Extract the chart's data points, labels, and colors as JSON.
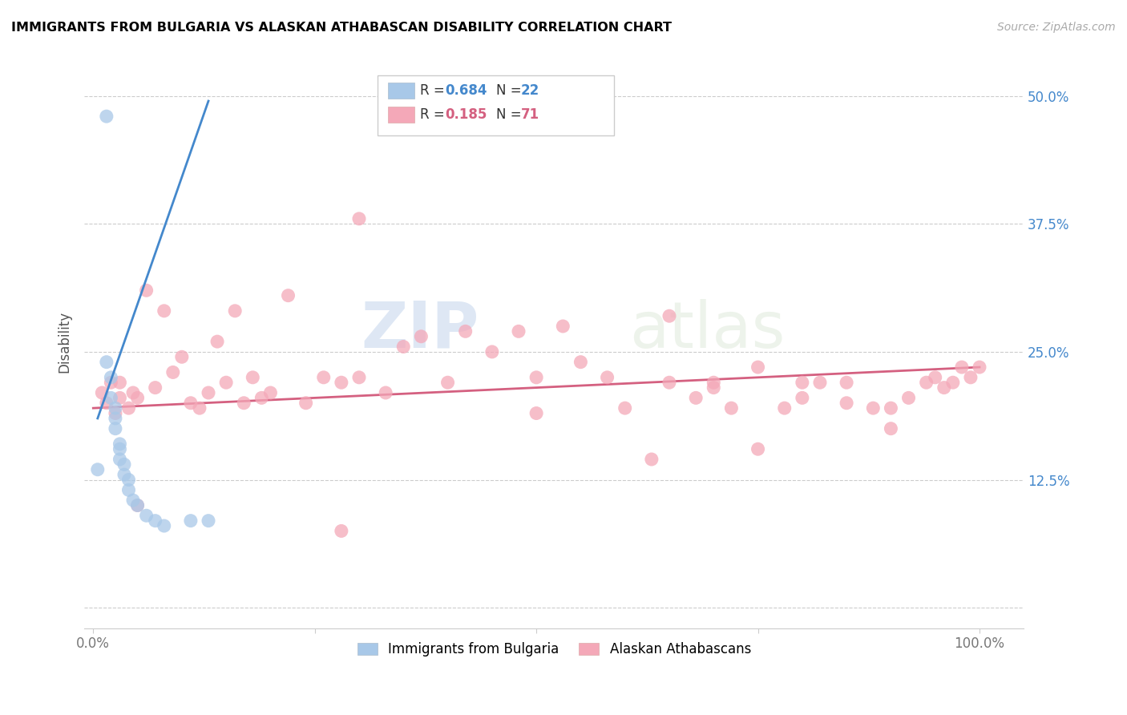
{
  "title": "IMMIGRANTS FROM BULGARIA VS ALASKAN ATHABASCAN DISABILITY CORRELATION CHART",
  "source": "Source: ZipAtlas.com",
  "ylabel": "Disability",
  "x_tick_labels": [
    "0.0%",
    "",
    "",
    "",
    "100.0%"
  ],
  "y_tick_labels": [
    "",
    "12.5%",
    "25.0%",
    "37.5%",
    "50.0%"
  ],
  "legend_labels": [
    "Immigrants from Bulgaria",
    "Alaskan Athabascans"
  ],
  "blue_color": "#a8c8e8",
  "pink_color": "#f4a8b8",
  "blue_line_color": "#4488cc",
  "pink_line_color": "#d46080",
  "blue_points_x": [
    0.5,
    1.5,
    1.5,
    2.0,
    2.0,
    2.5,
    2.5,
    2.5,
    3.0,
    3.0,
    3.0,
    3.5,
    3.5,
    4.0,
    4.0,
    4.5,
    5.0,
    6.0,
    7.0,
    8.0,
    11.0,
    13.0
  ],
  "blue_points_y": [
    13.5,
    48.0,
    24.0,
    22.5,
    20.5,
    19.5,
    18.5,
    17.5,
    16.0,
    15.5,
    14.5,
    14.0,
    13.0,
    12.5,
    11.5,
    10.5,
    10.0,
    9.0,
    8.5,
    8.0,
    8.5,
    8.5
  ],
  "pink_points_x": [
    1.0,
    1.5,
    2.0,
    2.5,
    3.0,
    3.0,
    4.0,
    4.5,
    5.0,
    6.0,
    7.0,
    8.0,
    9.0,
    10.0,
    11.0,
    12.0,
    13.0,
    14.0,
    15.0,
    16.0,
    17.0,
    18.0,
    19.0,
    20.0,
    22.0,
    24.0,
    26.0,
    28.0,
    30.0,
    33.0,
    35.0,
    37.0,
    40.0,
    42.0,
    45.0,
    48.0,
    50.0,
    53.0,
    55.0,
    58.0,
    60.0,
    63.0,
    65.0,
    68.0,
    70.0,
    72.0,
    75.0,
    78.0,
    80.0,
    82.0,
    85.0,
    88.0,
    90.0,
    92.0,
    94.0,
    95.0,
    96.0,
    97.0,
    98.0,
    99.0,
    100.0,
    30.0,
    5.0,
    28.0,
    50.0,
    65.0,
    70.0,
    75.0,
    80.0,
    85.0,
    90.0
  ],
  "pink_points_y": [
    21.0,
    20.0,
    22.0,
    19.0,
    22.0,
    20.5,
    19.5,
    21.0,
    20.5,
    31.0,
    21.5,
    29.0,
    23.0,
    24.5,
    20.0,
    19.5,
    21.0,
    26.0,
    22.0,
    29.0,
    20.0,
    22.5,
    20.5,
    21.0,
    30.5,
    20.0,
    22.5,
    22.0,
    22.5,
    21.0,
    25.5,
    26.5,
    22.0,
    27.0,
    25.0,
    27.0,
    22.5,
    27.5,
    24.0,
    22.5,
    19.5,
    14.5,
    22.0,
    20.5,
    22.0,
    19.5,
    23.5,
    19.5,
    22.0,
    22.0,
    22.0,
    19.5,
    19.5,
    20.5,
    22.0,
    22.5,
    21.5,
    22.0,
    23.5,
    22.5,
    23.5,
    38.0,
    10.0,
    7.5,
    19.0,
    28.5,
    21.5,
    15.5,
    20.5,
    20.0,
    17.5
  ],
  "blue_trend_x": [
    0.5,
    13.0
  ],
  "blue_trend_y": [
    18.5,
    49.5
  ],
  "pink_trend_x": [
    0.0,
    100.0
  ],
  "pink_trend_y": [
    19.5,
    23.5
  ],
  "xlim": [
    -1.0,
    105.0
  ],
  "ylim": [
    -2.0,
    54.0
  ],
  "x_ticks": [
    0,
    25,
    50,
    75,
    100
  ],
  "y_ticks": [
    0,
    12.5,
    25.0,
    37.5,
    50.0
  ]
}
